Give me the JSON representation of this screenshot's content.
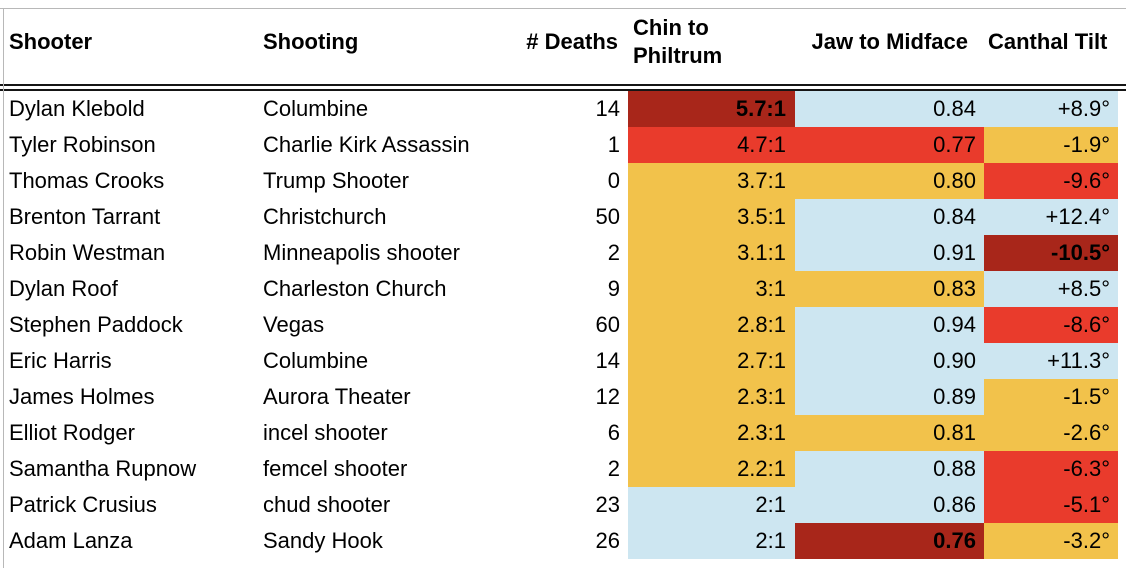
{
  "table": {
    "columns": [
      {
        "label": "Shooter"
      },
      {
        "label": "Shooting"
      },
      {
        "label": "# Deaths"
      },
      {
        "label": "Chin to Philtrum"
      },
      {
        "label": "Jaw to Midface"
      },
      {
        "label": "Canthal Tilt"
      }
    ],
    "rows": [
      {
        "shooter": "Dylan Klebold",
        "shooting": "Columbine",
        "deaths": "14",
        "chin": {
          "value": "5.7:1",
          "color": "darkred",
          "bold": true
        },
        "jaw": {
          "value": "0.84",
          "color": "blue",
          "bold": false
        },
        "tilt": {
          "value": "+8.9°",
          "color": "blue",
          "bold": false
        }
      },
      {
        "shooter": "Tyler Robinson",
        "shooting": "Charlie Kirk Assassin",
        "deaths": "1",
        "chin": {
          "value": "4.7:1",
          "color": "red",
          "bold": false
        },
        "jaw": {
          "value": "0.77",
          "color": "red",
          "bold": false
        },
        "tilt": {
          "value": "-1.9°",
          "color": "yellow",
          "bold": false
        }
      },
      {
        "shooter": "Thomas Crooks",
        "shooting": "Trump Shooter",
        "deaths": "0",
        "chin": {
          "value": "3.7:1",
          "color": "yellow",
          "bold": false
        },
        "jaw": {
          "value": "0.80",
          "color": "yellow",
          "bold": false
        },
        "tilt": {
          "value": "-9.6°",
          "color": "red",
          "bold": false
        }
      },
      {
        "shooter": "Brenton Tarrant",
        "shooting": "Christchurch",
        "deaths": "50",
        "chin": {
          "value": "3.5:1",
          "color": "yellow",
          "bold": false
        },
        "jaw": {
          "value": "0.84",
          "color": "blue",
          "bold": false
        },
        "tilt": {
          "value": "+12.4°",
          "color": "blue",
          "bold": false
        }
      },
      {
        "shooter": "Robin Westman",
        "shooting": "Minneapolis shooter",
        "deaths": "2",
        "chin": {
          "value": "3.1:1",
          "color": "yellow",
          "bold": false
        },
        "jaw": {
          "value": "0.91",
          "color": "blue",
          "bold": false
        },
        "tilt": {
          "value": "-10.5°",
          "color": "darkred",
          "bold": true
        }
      },
      {
        "shooter": "Dylan Roof",
        "shooting": "Charleston Church",
        "deaths": "9",
        "chin": {
          "value": "3:1",
          "color": "yellow",
          "bold": false
        },
        "jaw": {
          "value": "0.83",
          "color": "yellow",
          "bold": false
        },
        "tilt": {
          "value": "+8.5°",
          "color": "blue",
          "bold": false
        }
      },
      {
        "shooter": "Stephen Paddock",
        "shooting": "Vegas",
        "deaths": "60",
        "chin": {
          "value": "2.8:1",
          "color": "yellow",
          "bold": false
        },
        "jaw": {
          "value": "0.94",
          "color": "blue",
          "bold": false
        },
        "tilt": {
          "value": "-8.6°",
          "color": "red",
          "bold": false
        }
      },
      {
        "shooter": "Eric Harris",
        "shooting": "Columbine",
        "deaths": "14",
        "chin": {
          "value": "2.7:1",
          "color": "yellow",
          "bold": false
        },
        "jaw": {
          "value": "0.90",
          "color": "blue",
          "bold": false
        },
        "tilt": {
          "value": "+11.3°",
          "color": "blue",
          "bold": false
        }
      },
      {
        "shooter": "James Holmes",
        "shooting": "Aurora Theater",
        "deaths": "12",
        "chin": {
          "value": "2.3:1",
          "color": "yellow",
          "bold": false
        },
        "jaw": {
          "value": "0.89",
          "color": "blue",
          "bold": false
        },
        "tilt": {
          "value": "-1.5°",
          "color": "yellow",
          "bold": false
        }
      },
      {
        "shooter": "Elliot Rodger",
        "shooting": "incel shooter",
        "deaths": "6",
        "chin": {
          "value": "2.3:1",
          "color": "yellow",
          "bold": false
        },
        "jaw": {
          "value": "0.81",
          "color": "yellow",
          "bold": false
        },
        "tilt": {
          "value": "-2.6°",
          "color": "yellow",
          "bold": false
        }
      },
      {
        "shooter": "Samantha Rupnow",
        "shooting": "femcel shooter",
        "deaths": "2",
        "chin": {
          "value": "2.2:1",
          "color": "yellow",
          "bold": false
        },
        "jaw": {
          "value": "0.88",
          "color": "blue",
          "bold": false
        },
        "tilt": {
          "value": "-6.3°",
          "color": "red",
          "bold": false
        }
      },
      {
        "shooter": "Patrick Crusius",
        "shooting": "chud shooter",
        "deaths": "23",
        "chin": {
          "value": "2:1",
          "color": "blue",
          "bold": false
        },
        "jaw": {
          "value": "0.86",
          "color": "blue",
          "bold": false
        },
        "tilt": {
          "value": "-5.1°",
          "color": "red",
          "bold": false
        }
      },
      {
        "shooter": "Adam Lanza",
        "shooting": "Sandy Hook",
        "deaths": "26",
        "chin": {
          "value": "2:1",
          "color": "blue",
          "bold": false
        },
        "jaw": {
          "value": "0.76",
          "color": "darkred",
          "bold": true
        },
        "tilt": {
          "value": "-3.2°",
          "color": "yellow",
          "bold": false
        }
      }
    ]
  },
  "colors": {
    "darkred": "#A8261A",
    "red": "#E93B2C",
    "yellow": "#F2C24B",
    "blue": "#CDE6F1",
    "rule_gray": "#B8B8B8",
    "border_black": "#151515"
  }
}
